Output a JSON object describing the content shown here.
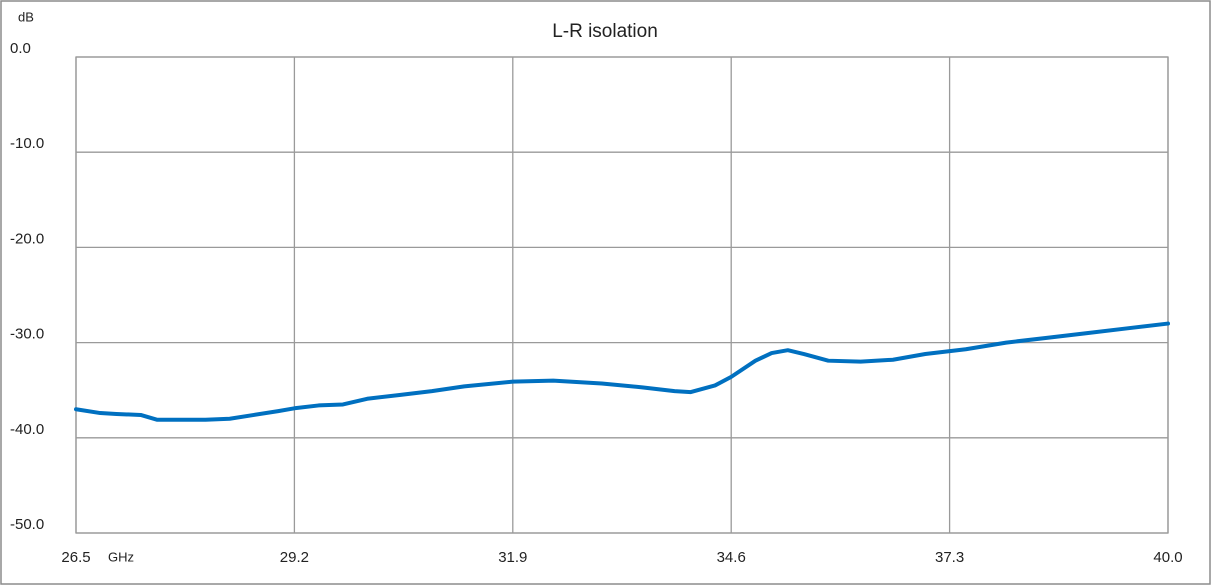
{
  "chart_data": {
    "type": "line",
    "title": "L-R isolation",
    "y_label": "dB",
    "x_label": "GHz",
    "x": [
      26.5,
      26.8,
      27.0,
      27.3,
      27.5,
      27.8,
      28.1,
      28.4,
      28.7,
      29.0,
      29.2,
      29.5,
      29.8,
      30.1,
      30.5,
      30.9,
      31.3,
      31.9,
      32.4,
      33.0,
      33.5,
      33.9,
      34.1,
      34.4,
      34.6,
      34.9,
      35.1,
      35.3,
      35.5,
      35.8,
      36.2,
      36.6,
      37.0,
      37.5,
      38.0,
      38.5,
      39.0,
      39.5,
      40.0
    ],
    "series": [
      {
        "name": "L-R isolation",
        "color": "#0070c0",
        "values": [
          -37.0,
          -37.4,
          -37.5,
          -37.6,
          -38.1,
          -38.1,
          -38.1,
          -38.0,
          -37.6,
          -37.2,
          -36.9,
          -36.6,
          -36.5,
          -35.9,
          -35.5,
          -35.1,
          -34.6,
          -34.1,
          -34.0,
          -34.3,
          -34.7,
          -35.1,
          -35.2,
          -34.5,
          -33.6,
          -31.9,
          -31.1,
          -30.8,
          -31.2,
          -31.9,
          -32.0,
          -31.8,
          -31.2,
          -30.7,
          -30.0,
          -29.5,
          -29.0,
          -28.5,
          -28.0
        ]
      }
    ],
    "xlim": [
      26.5,
      40
    ],
    "xticks": [
      26.5,
      29.2,
      31.9,
      34.6,
      37.3,
      {
        "value": 40,
        "label": "40.0"
      }
    ],
    "ylim": [
      -50,
      0
    ],
    "yticks": [
      {
        "value": -50,
        "label": "-50.0"
      },
      {
        "value": -40,
        "label": "-40.0"
      },
      {
        "value": -30,
        "label": "-30.0"
      },
      {
        "value": -20,
        "label": "-20.0"
      },
      {
        "value": -10,
        "label": "-10.0"
      },
      {
        "value": 0,
        "label": "0.0"
      }
    ],
    "grid": true
  }
}
